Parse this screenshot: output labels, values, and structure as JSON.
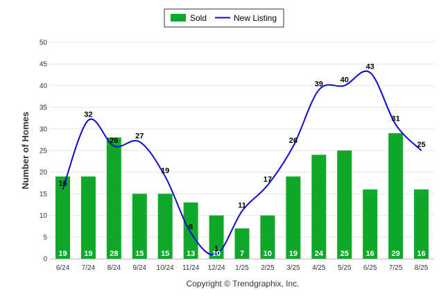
{
  "chart_data": {
    "type": "bar",
    "categories": [
      "6/24",
      "7/24",
      "8/24",
      "9/24",
      "10/24",
      "11/24",
      "12/24",
      "1/25",
      "2/25",
      "3/25",
      "4/25",
      "5/25",
      "6/25",
      "7/25",
      "8/25"
    ],
    "series": [
      {
        "name": "Sold",
        "type": "bar",
        "values": [
          19,
          19,
          28,
          15,
          15,
          13,
          10,
          7,
          10,
          19,
          24,
          25,
          16,
          29,
          16
        ]
      },
      {
        "name": "New Listing",
        "type": "line",
        "values": [
          16,
          32,
          26,
          27,
          19,
          6,
          1,
          11,
          17,
          26,
          39,
          40,
          43,
          31,
          25
        ]
      }
    ],
    "xlabel": "",
    "ylabel": "Number of Homes",
    "ylim": [
      0,
      50
    ],
    "yticks": [
      0,
      5,
      10,
      15,
      20,
      25,
      30,
      35,
      40,
      45,
      50
    ],
    "grid": true,
    "legend": "top-center",
    "colors": {
      "bar": "#10a82a",
      "line": "#0a0acf"
    }
  },
  "footer": {
    "copyright": "Copyright © Trendgraphix, Inc."
  }
}
